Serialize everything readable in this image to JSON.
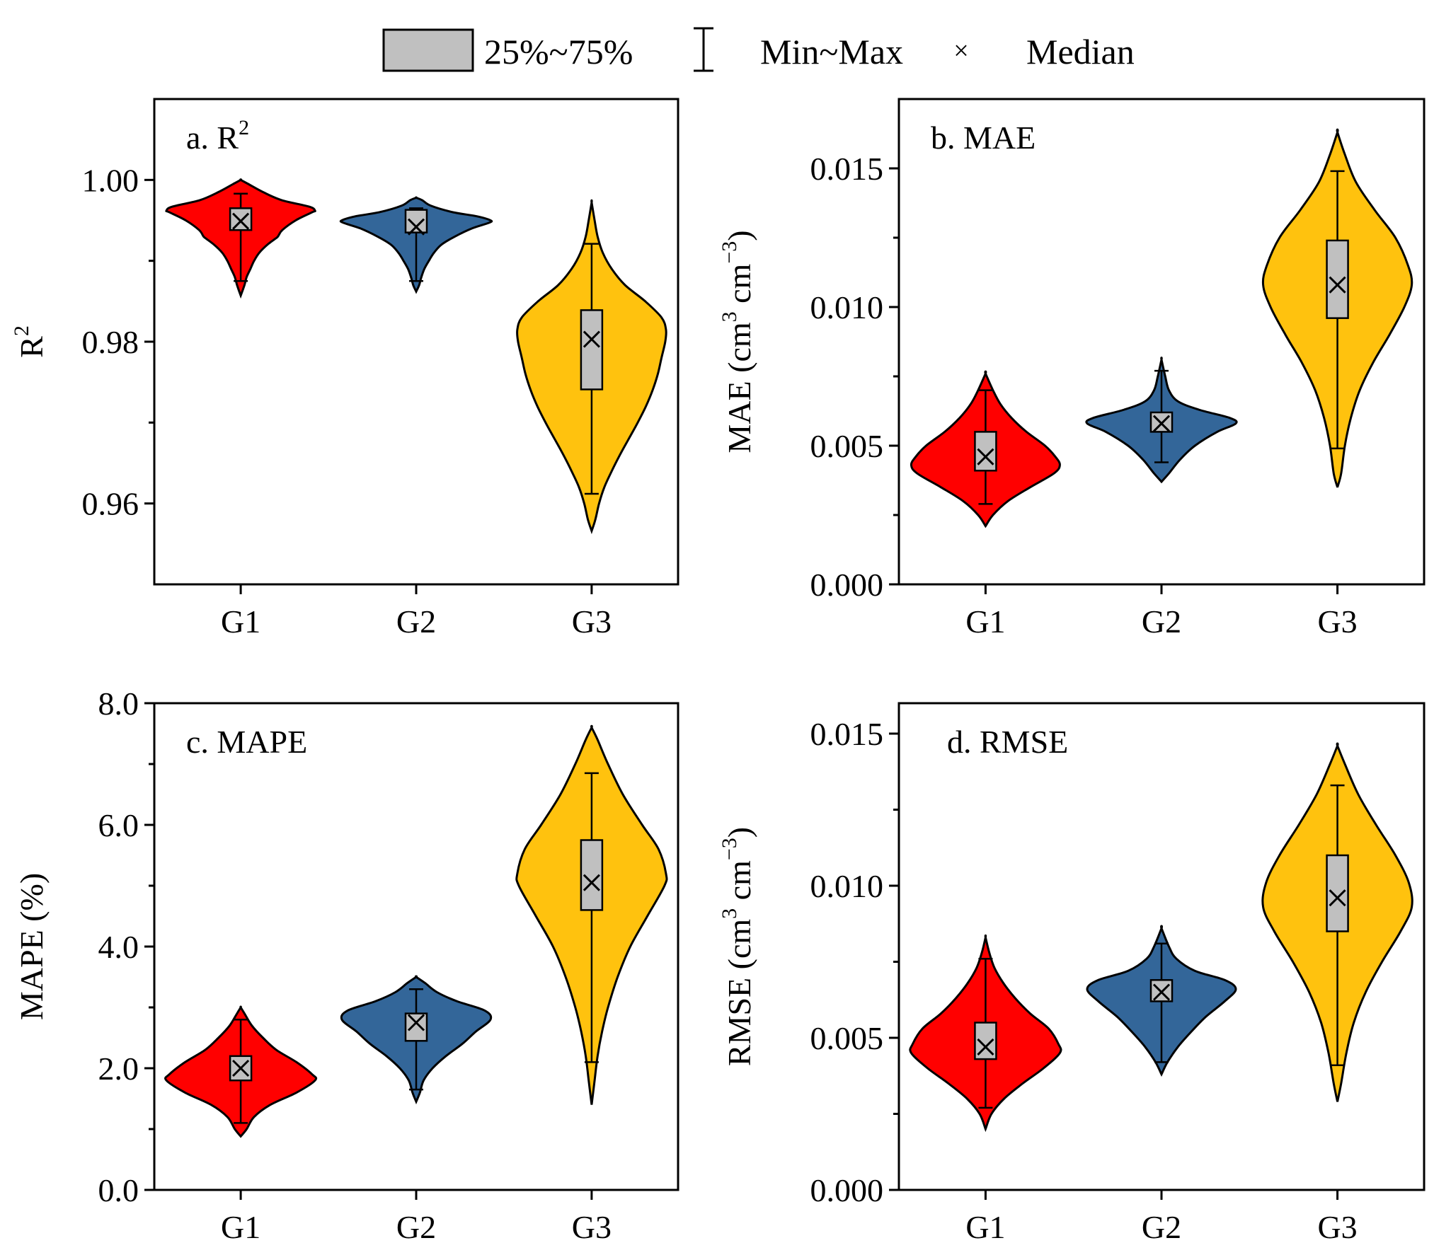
{
  "legend": {
    "box_label": "25%~75%",
    "whisker_label": "Min~Max",
    "median_label": "Median",
    "median_symbol": "×"
  },
  "colors": {
    "G1": "#ff0000",
    "G2": "#336699",
    "G3": "#ffc20e",
    "box": "#c0c0c0",
    "outline": "#000000"
  },
  "chart_data": [
    {
      "type": "violin",
      "id": "a",
      "title": "a. R",
      "title_sup": "2",
      "ylabel": "R",
      "ylabel_sup": "2",
      "ylabel_rest": "",
      "ylim": [
        0.95,
        1.01
      ],
      "yticks": [
        0.96,
        0.98,
        1.0
      ],
      "ytick_labels": [
        "0.96",
        "0.98",
        "1.00"
      ],
      "yminor": [
        0.97,
        0.99
      ],
      "categories": [
        "G1",
        "G2",
        "G3"
      ],
      "series": [
        {
          "name": "G1",
          "min": 0.9875,
          "q1": 0.9938,
          "median": 0.9949,
          "q3": 0.9965,
          "max": 0.9983,
          "vmin": 0.9857,
          "vmax": 1.0,
          "profile": [
            [
              0.9857,
              0.0
            ],
            [
              0.987,
              0.05
            ],
            [
              0.988,
              0.08
            ],
            [
              0.989,
              0.13
            ],
            [
              0.99,
              0.18
            ],
            [
              0.991,
              0.25
            ],
            [
              0.992,
              0.36
            ],
            [
              0.9927,
              0.46
            ],
            [
              0.993,
              0.5
            ],
            [
              0.9938,
              0.56
            ],
            [
              0.995,
              0.74
            ],
            [
              0.996,
              0.96
            ],
            [
              0.9962,
              1.0
            ],
            [
              0.9967,
              0.92
            ],
            [
              0.9975,
              0.55
            ],
            [
              0.9985,
              0.3
            ],
            [
              0.9995,
              0.1
            ],
            [
              1.0,
              0.0
            ]
          ]
        },
        {
          "name": "G2",
          "min": 0.9875,
          "q1": 0.9935,
          "median": 0.9942,
          "q3": 0.9963,
          "max": 0.9965,
          "vmin": 0.9862,
          "vmax": 0.9978,
          "profile": [
            [
              0.9862,
              0.0
            ],
            [
              0.987,
              0.04
            ],
            [
              0.988,
              0.07
            ],
            [
              0.989,
              0.11
            ],
            [
              0.99,
              0.17
            ],
            [
              0.991,
              0.24
            ],
            [
              0.992,
              0.34
            ],
            [
              0.993,
              0.52
            ],
            [
              0.994,
              0.75
            ],
            [
              0.9947,
              0.98
            ],
            [
              0.995,
              1.0
            ],
            [
              0.9955,
              0.82
            ],
            [
              0.996,
              0.5
            ],
            [
              0.9968,
              0.2
            ],
            [
              0.9975,
              0.08
            ],
            [
              0.9978,
              0.0
            ]
          ]
        },
        {
          "name": "G3",
          "min": 0.9612,
          "q1": 0.9741,
          "median": 0.9803,
          "q3": 0.9839,
          "max": 0.9921,
          "vmin": 0.9566,
          "vmax": 0.9972,
          "profile": [
            [
              0.9566,
              0.0
            ],
            [
              0.958,
              0.05
            ],
            [
              0.96,
              0.1
            ],
            [
              0.962,
              0.17
            ],
            [
              0.964,
              0.27
            ],
            [
              0.966,
              0.38
            ],
            [
              0.968,
              0.5
            ],
            [
              0.97,
              0.62
            ],
            [
              0.972,
              0.73
            ],
            [
              0.974,
              0.82
            ],
            [
              0.976,
              0.89
            ],
            [
              0.978,
              0.94
            ],
            [
              0.98,
              0.99
            ],
            [
              0.9815,
              1.0
            ],
            [
              0.983,
              0.94
            ],
            [
              0.985,
              0.72
            ],
            [
              0.987,
              0.45
            ],
            [
              0.989,
              0.27
            ],
            [
              0.991,
              0.15
            ],
            [
              0.993,
              0.08
            ],
            [
              0.995,
              0.04
            ],
            [
              0.9972,
              0.0
            ]
          ]
        }
      ]
    },
    {
      "type": "violin",
      "id": "b",
      "title": "b. MAE",
      "title_sup": "",
      "ylabel": "MAE (cm",
      "ylabel_sup": "3",
      "ylabel_mid": " cm",
      "ylabel_sup2": "−3",
      "ylabel_rest": ")",
      "ylim": [
        0.0,
        0.0175
      ],
      "yticks": [
        0.0,
        0.005,
        0.01,
        0.015
      ],
      "ytick_labels": [
        "0.000",
        "0.005",
        "0.010",
        "0.015"
      ],
      "yminor": [
        0.0025,
        0.0075,
        0.0125
      ],
      "categories": [
        "G1",
        "G2",
        "G3"
      ],
      "series": [
        {
          "name": "G1",
          "min": 0.0029,
          "q1": 0.0041,
          "median": 0.0046,
          "q3": 0.0055,
          "max": 0.007,
          "vmin": 0.0021,
          "vmax": 0.0076,
          "profile": [
            [
              0.0021,
              0.0
            ],
            [
              0.0025,
              0.1
            ],
            [
              0.003,
              0.3
            ],
            [
              0.0035,
              0.6
            ],
            [
              0.004,
              0.92
            ],
            [
              0.0043,
              1.0
            ],
            [
              0.0046,
              0.94
            ],
            [
              0.005,
              0.8
            ],
            [
              0.0055,
              0.55
            ],
            [
              0.006,
              0.35
            ],
            [
              0.0065,
              0.2
            ],
            [
              0.007,
              0.1
            ],
            [
              0.0076,
              0.0
            ]
          ]
        },
        {
          "name": "G2",
          "min": 0.0044,
          "q1": 0.0055,
          "median": 0.0058,
          "q3": 0.0062,
          "max": 0.0077,
          "vmin": 0.0037,
          "vmax": 0.0081,
          "profile": [
            [
              0.0037,
              0.0
            ],
            [
              0.004,
              0.1
            ],
            [
              0.0045,
              0.25
            ],
            [
              0.005,
              0.45
            ],
            [
              0.0055,
              0.75
            ],
            [
              0.0058,
              1.0
            ],
            [
              0.006,
              0.92
            ],
            [
              0.0063,
              0.5
            ],
            [
              0.0066,
              0.22
            ],
            [
              0.007,
              0.1
            ],
            [
              0.0075,
              0.05
            ],
            [
              0.0081,
              0.0
            ]
          ]
        },
        {
          "name": "G3",
          "min": 0.0049,
          "q1": 0.0096,
          "median": 0.0108,
          "q3": 0.0124,
          "max": 0.0149,
          "vmin": 0.0035,
          "vmax": 0.0163,
          "profile": [
            [
              0.0035,
              0.0
            ],
            [
              0.004,
              0.05
            ],
            [
              0.005,
              0.1
            ],
            [
              0.006,
              0.18
            ],
            [
              0.007,
              0.3
            ],
            [
              0.008,
              0.48
            ],
            [
              0.009,
              0.7
            ],
            [
              0.01,
              0.9
            ],
            [
              0.0108,
              1.0
            ],
            [
              0.0115,
              0.95
            ],
            [
              0.0125,
              0.78
            ],
            [
              0.0135,
              0.5
            ],
            [
              0.0145,
              0.25
            ],
            [
              0.0155,
              0.1
            ],
            [
              0.0163,
              0.0
            ]
          ]
        }
      ]
    },
    {
      "type": "violin",
      "id": "c",
      "title": "c. MAPE",
      "title_sup": "",
      "ylabel": "MAPE (%)",
      "ylabel_sup": "",
      "ylabel_rest": "",
      "ylim": [
        0.0,
        8.0
      ],
      "yticks": [
        0.0,
        2.0,
        4.0,
        6.0,
        8.0
      ],
      "ytick_labels": [
        "0.0",
        "2.0",
        "4.0",
        "6.0",
        "8.0"
      ],
      "yminor": [
        1.0,
        3.0,
        5.0,
        7.0
      ],
      "categories": [
        "G1",
        "G2",
        "G3"
      ],
      "series": [
        {
          "name": "G1",
          "min": 1.1,
          "q1": 1.8,
          "median": 2.0,
          "q3": 2.2,
          "max": 2.8,
          "vmin": 0.88,
          "vmax": 3.0,
          "profile": [
            [
              0.88,
              0.0
            ],
            [
              1.0,
              0.08
            ],
            [
              1.2,
              0.18
            ],
            [
              1.4,
              0.4
            ],
            [
              1.6,
              0.75
            ],
            [
              1.8,
              1.0
            ],
            [
              1.9,
              0.96
            ],
            [
              2.1,
              0.75
            ],
            [
              2.3,
              0.48
            ],
            [
              2.5,
              0.3
            ],
            [
              2.7,
              0.15
            ],
            [
              2.9,
              0.05
            ],
            [
              3.0,
              0.0
            ]
          ]
        },
        {
          "name": "G2",
          "min": 1.65,
          "q1": 2.45,
          "median": 2.75,
          "q3": 2.9,
          "max": 3.3,
          "vmin": 1.45,
          "vmax": 3.5,
          "profile": [
            [
              1.45,
              0.0
            ],
            [
              1.6,
              0.05
            ],
            [
              1.8,
              0.1
            ],
            [
              2.0,
              0.22
            ],
            [
              2.2,
              0.4
            ],
            [
              2.4,
              0.62
            ],
            [
              2.6,
              0.8
            ],
            [
              2.8,
              1.0
            ],
            [
              2.95,
              0.92
            ],
            [
              3.1,
              0.55
            ],
            [
              3.25,
              0.28
            ],
            [
              3.4,
              0.12
            ],
            [
              3.5,
              0.0
            ]
          ]
        },
        {
          "name": "G3",
          "min": 2.1,
          "q1": 4.6,
          "median": 5.05,
          "q3": 5.75,
          "max": 6.85,
          "vmin": 1.4,
          "vmax": 7.6,
          "profile": [
            [
              1.4,
              0.0
            ],
            [
              1.8,
              0.04
            ],
            [
              2.2,
              0.08
            ],
            [
              2.6,
              0.14
            ],
            [
              3.0,
              0.22
            ],
            [
              3.5,
              0.35
            ],
            [
              4.0,
              0.52
            ],
            [
              4.5,
              0.75
            ],
            [
              5.0,
              0.98
            ],
            [
              5.2,
              1.0
            ],
            [
              5.6,
              0.9
            ],
            [
              6.0,
              0.68
            ],
            [
              6.5,
              0.42
            ],
            [
              7.0,
              0.22
            ],
            [
              7.4,
              0.08
            ],
            [
              7.6,
              0.0
            ]
          ]
        }
      ]
    },
    {
      "type": "violin",
      "id": "d",
      "title": "d. RMSE",
      "title_sup": "",
      "ylabel": "RMSE (cm",
      "ylabel_sup": "3",
      "ylabel_mid": " cm",
      "ylabel_sup2": "−3",
      "ylabel_rest": ")",
      "ylim": [
        0.0,
        0.016
      ],
      "yticks": [
        0.0,
        0.005,
        0.01,
        0.015
      ],
      "ytick_labels": [
        "0.000",
        "0.005",
        "0.010",
        "0.015"
      ],
      "yminor": [
        0.0025,
        0.0075,
        0.0125
      ],
      "categories": [
        "G1",
        "G2",
        "G3"
      ],
      "series": [
        {
          "name": "G1",
          "min": 0.0027,
          "q1": 0.0043,
          "median": 0.0047,
          "q3": 0.0055,
          "max": 0.0076,
          "vmin": 0.002,
          "vmax": 0.0083,
          "profile": [
            [
              0.002,
              0.0
            ],
            [
              0.0025,
              0.08
            ],
            [
              0.003,
              0.25
            ],
            [
              0.0035,
              0.5
            ],
            [
              0.004,
              0.78
            ],
            [
              0.0045,
              1.0
            ],
            [
              0.0048,
              0.98
            ],
            [
              0.0053,
              0.85
            ],
            [
              0.0058,
              0.6
            ],
            [
              0.0063,
              0.4
            ],
            [
              0.0068,
              0.24
            ],
            [
              0.0073,
              0.12
            ],
            [
              0.0078,
              0.05
            ],
            [
              0.0083,
              0.0
            ]
          ]
        },
        {
          "name": "G2",
          "min": 0.0042,
          "q1": 0.0062,
          "median": 0.0065,
          "q3": 0.0069,
          "max": 0.0081,
          "vmin": 0.0038,
          "vmax": 0.0086,
          "profile": [
            [
              0.0038,
              0.0
            ],
            [
              0.0042,
              0.08
            ],
            [
              0.0047,
              0.22
            ],
            [
              0.0052,
              0.4
            ],
            [
              0.0057,
              0.6
            ],
            [
              0.0062,
              0.85
            ],
            [
              0.0066,
              1.0
            ],
            [
              0.0069,
              0.85
            ],
            [
              0.0072,
              0.45
            ],
            [
              0.0076,
              0.2
            ],
            [
              0.008,
              0.1
            ],
            [
              0.0086,
              0.0
            ]
          ]
        },
        {
          "name": "G3",
          "min": 0.0041,
          "q1": 0.0085,
          "median": 0.0096,
          "q3": 0.011,
          "max": 0.0133,
          "vmin": 0.0029,
          "vmax": 0.0146,
          "profile": [
            [
              0.0029,
              0.0
            ],
            [
              0.0035,
              0.05
            ],
            [
              0.0045,
              0.12
            ],
            [
              0.0055,
              0.22
            ],
            [
              0.0065,
              0.38
            ],
            [
              0.0075,
              0.6
            ],
            [
              0.0085,
              0.85
            ],
            [
              0.0093,
              1.0
            ],
            [
              0.0101,
              0.96
            ],
            [
              0.011,
              0.78
            ],
            [
              0.012,
              0.52
            ],
            [
              0.013,
              0.28
            ],
            [
              0.014,
              0.1
            ],
            [
              0.0146,
              0.0
            ]
          ]
        }
      ]
    }
  ]
}
